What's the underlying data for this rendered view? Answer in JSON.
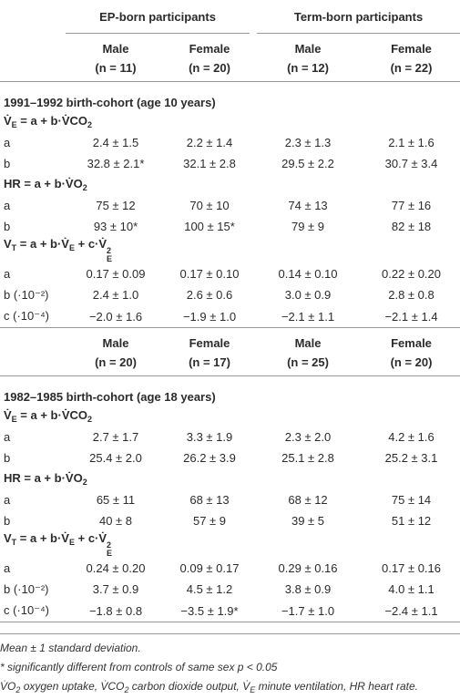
{
  "header": {
    "groups": [
      "EP-born participants",
      "Term-born participants"
    ]
  },
  "sections": [
    {
      "columns": [
        {
          "sex": "Male",
          "n": "(n = 11)"
        },
        {
          "sex": "Female",
          "n": "(n = 20)"
        },
        {
          "sex": "Male",
          "n": "(n = 12)"
        },
        {
          "sex": "Female",
          "n": "(n = 22)"
        }
      ],
      "cohort": "1991–1992 birth-cohort (age 10 years)",
      "blocks": [
        {
          "formula": [
            {
              "text": "V̇"
            },
            {
              "sub": "E"
            },
            {
              "text": " = a + b·V̇CO"
            },
            {
              "sub": "2"
            }
          ],
          "rows": [
            [
              "a",
              "2.4 ± 1.5",
              "2.2 ± 1.4",
              "2.3 ± 1.3",
              "2.1 ± 1.6"
            ],
            [
              "b",
              "32.8 ± 2.1*",
              "32.1 ± 2.8",
              "29.5 ± 2.2",
              "30.7 ± 3.4"
            ]
          ]
        },
        {
          "formula": [
            {
              "text": "HR = a + b·V̇O"
            },
            {
              "sub": "2"
            }
          ],
          "rows": [
            [
              "a",
              "75 ± 12",
              "70 ± 10",
              "74 ± 13",
              "77 ± 16"
            ],
            [
              "b",
              "93 ± 10*",
              "100 ± 15*",
              "79 ± 9",
              "82 ± 18"
            ]
          ]
        },
        {
          "formula": [
            {
              "text": "V"
            },
            {
              "sub": "T"
            },
            {
              "text": " = a + b·V̇"
            },
            {
              "sub": "E"
            },
            {
              "text": " + c·V̇"
            },
            {
              "sub": "E",
              "sup": "2"
            }
          ],
          "rows": [
            [
              "a",
              "0.17 ± 0.09",
              "0.17 ± 0.10",
              "0.14 ± 0.10",
              "0.22 ± 0.20"
            ],
            [
              "b (·10⁻²)",
              "2.4 ± 1.0",
              "2.6 ± 0.6",
              "3.0 ± 0.9",
              "2.8 ± 0.8"
            ],
            [
              "c (·10⁻⁴)",
              "−2.0 ± 1.6",
              "−1.9 ± 1.0",
              "−2.1 ± 1.1",
              "−2.1 ± 1.4"
            ]
          ]
        }
      ]
    },
    {
      "columns": [
        {
          "sex": "Male",
          "n": "(n = 20)"
        },
        {
          "sex": "Female",
          "n": "(n = 17)"
        },
        {
          "sex": "Male",
          "n": "(n = 25)"
        },
        {
          "sex": "Female",
          "n": "(n = 20)"
        }
      ],
      "cohort": "1982–1985 birth-cohort (age 18 years)",
      "blocks": [
        {
          "formula": [
            {
              "text": "V̇"
            },
            {
              "sub": "E"
            },
            {
              "text": " = a + b·V̇CO"
            },
            {
              "sub": "2"
            }
          ],
          "rows": [
            [
              "a",
              "2.7 ± 1.7",
              "3.3 ± 1.9",
              "2.3 ± 2.0",
              "4.2 ± 1.6"
            ],
            [
              "b",
              "25.4 ± 2.0",
              "26.2 ± 3.9",
              "25.1 ± 2.8",
              "25.2 ± 3.1"
            ]
          ]
        },
        {
          "formula": [
            {
              "text": "HR = a + b·V̇O"
            },
            {
              "sub": "2"
            }
          ],
          "rows": [
            [
              "a",
              "65 ± 11",
              "68 ± 13",
              "68 ± 12",
              "75 ± 14"
            ],
            [
              "b",
              "40 ± 8",
              "57 ± 9",
              "39 ± 5",
              "51 ± 12"
            ]
          ]
        },
        {
          "formula": [
            {
              "text": "V"
            },
            {
              "sub": "T"
            },
            {
              "text": " = a + b·V̇"
            },
            {
              "sub": "E"
            },
            {
              "text": " + c·V̇"
            },
            {
              "sub": "E",
              "sup": "2"
            }
          ],
          "rows": [
            [
              "a",
              "0.24 ± 0.20",
              "0.09 ± 0.17",
              "0.29 ± 0.16",
              "0.17 ± 0.16"
            ],
            [
              "b (·10⁻²)",
              "3.7 ± 0.9",
              "4.5 ± 1.2",
              "3.8 ± 0.9",
              "4.0 ± 1.1"
            ],
            [
              "c (·10⁻⁴)",
              "−1.8 ± 0.8",
              "−3.5 ± 1.9*",
              "−1.7 ± 1.0",
              "−2.4 ± 1.1"
            ]
          ]
        }
      ]
    }
  ],
  "notes": [
    [
      {
        "text": "Mean ± 1 standard deviation."
      }
    ],
    [
      {
        "text": "* significantly different from controls of same sex p < 0.05"
      }
    ],
    [
      {
        "text": "V̇O"
      },
      {
        "sub": "2"
      },
      {
        "text": " oxygen uptake, V̇CO"
      },
      {
        "sub": "2"
      },
      {
        "text": " carbon dioxide output, V̇"
      },
      {
        "sub": "E"
      },
      {
        "text": " minute ventilation, HR heart rate."
      }
    ]
  ]
}
